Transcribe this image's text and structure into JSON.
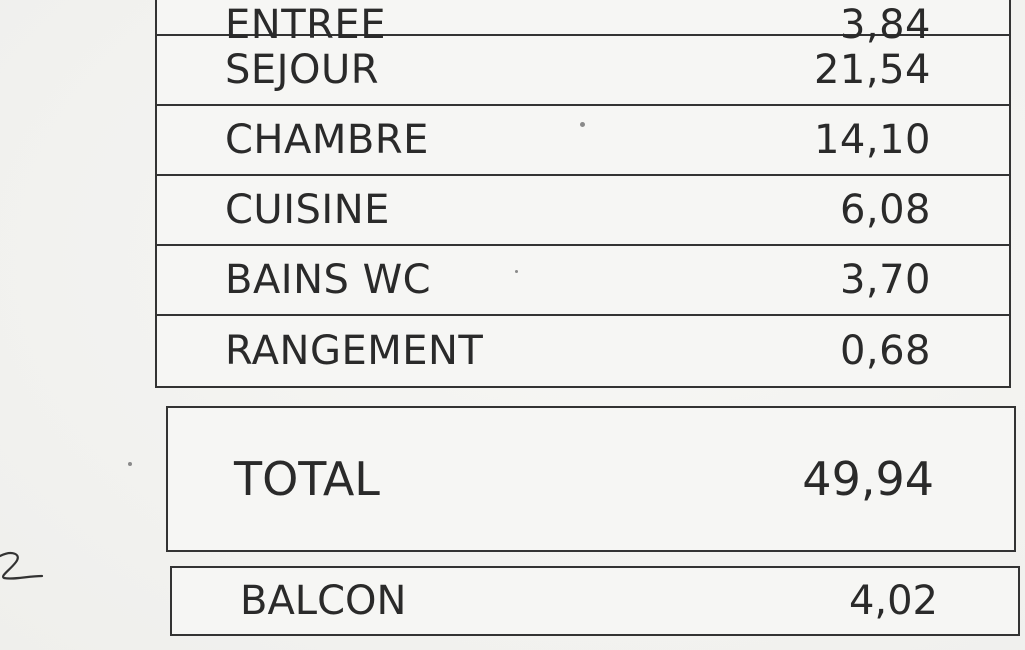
{
  "rows": [
    {
      "label": "ENTREE",
      "value": "3,84"
    },
    {
      "label": "SEJOUR",
      "value": "21,54"
    },
    {
      "label": "CHAMBRE",
      "value": "14,10"
    },
    {
      "label": "CUISINE",
      "value": "6,08"
    },
    {
      "label": "BAINS WC",
      "value": "3,70"
    },
    {
      "label": "RANGEMENT",
      "value": "0,68"
    }
  ],
  "total": {
    "label": "TOTAL",
    "value": "49,94"
  },
  "balcon": {
    "label": "BALCON",
    "value": "4,02"
  }
}
